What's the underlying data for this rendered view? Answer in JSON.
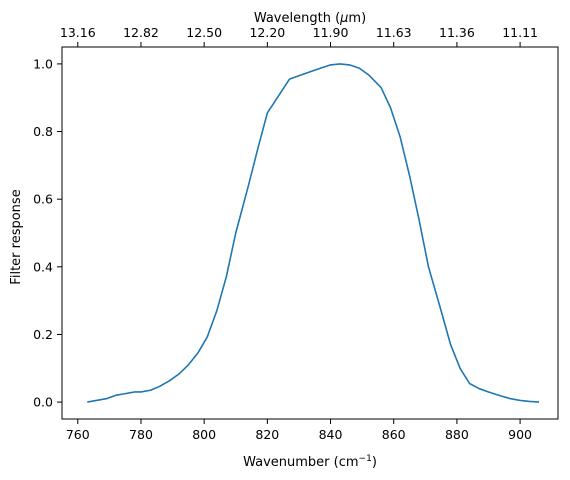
{
  "chart_data": {
    "type": "line",
    "xlabel": "Wavenumber (cm",
    "xlabel_sup": "−1",
    "xlabel_end": ")",
    "ylabel": "Filter response",
    "top_xlabel": "Wavelength (",
    "top_xlabel_mu": "μ",
    "top_xlabel_end": "m)",
    "xlim": [
      755,
      912
    ],
    "ylim": [
      -0.05,
      1.05
    ],
    "xticks": [
      760,
      780,
      800,
      820,
      840,
      860,
      880,
      900
    ],
    "xtick_labels": [
      "760",
      "780",
      "800",
      "820",
      "840",
      "860",
      "880",
      "900"
    ],
    "yticks": [
      0.0,
      0.2,
      0.4,
      0.6,
      0.8,
      1.0
    ],
    "ytick_labels": [
      "0.0",
      "0.2",
      "0.4",
      "0.6",
      "0.8",
      "1.0"
    ],
    "top_xticks": [
      760,
      780,
      800,
      820,
      840,
      860,
      880,
      900
    ],
    "top_xtick_labels": [
      "13.16",
      "12.82",
      "12.50",
      "12.20",
      "11.90",
      "11.63",
      "11.36",
      "11.11"
    ],
    "grid": false,
    "color": "#1f77b4",
    "series": [
      {
        "x": [
          763,
          769,
          772,
          775,
          778,
          780,
          783,
          786,
          789,
          792,
          795,
          798,
          801,
          804,
          807,
          810,
          814,
          817,
          820,
          827,
          830,
          833,
          837,
          840,
          843,
          846,
          849,
          852,
          856,
          859,
          862,
          865,
          868,
          871,
          875,
          878,
          881,
          884,
          887,
          890,
          894,
          897,
          900,
          903,
          906
        ],
        "y": [
          0.0,
          0.01,
          0.02,
          0.025,
          0.03,
          0.03,
          0.035,
          0.047,
          0.063,
          0.083,
          0.11,
          0.145,
          0.193,
          0.27,
          0.37,
          0.5,
          0.64,
          0.75,
          0.855,
          0.955,
          0.965,
          0.975,
          0.988,
          0.997,
          1.0,
          0.997,
          0.988,
          0.968,
          0.93,
          0.87,
          0.785,
          0.67,
          0.54,
          0.4,
          0.27,
          0.17,
          0.1,
          0.055,
          0.04,
          0.03,
          0.018,
          0.01,
          0.005,
          0.002,
          0.0
        ]
      }
    ]
  }
}
